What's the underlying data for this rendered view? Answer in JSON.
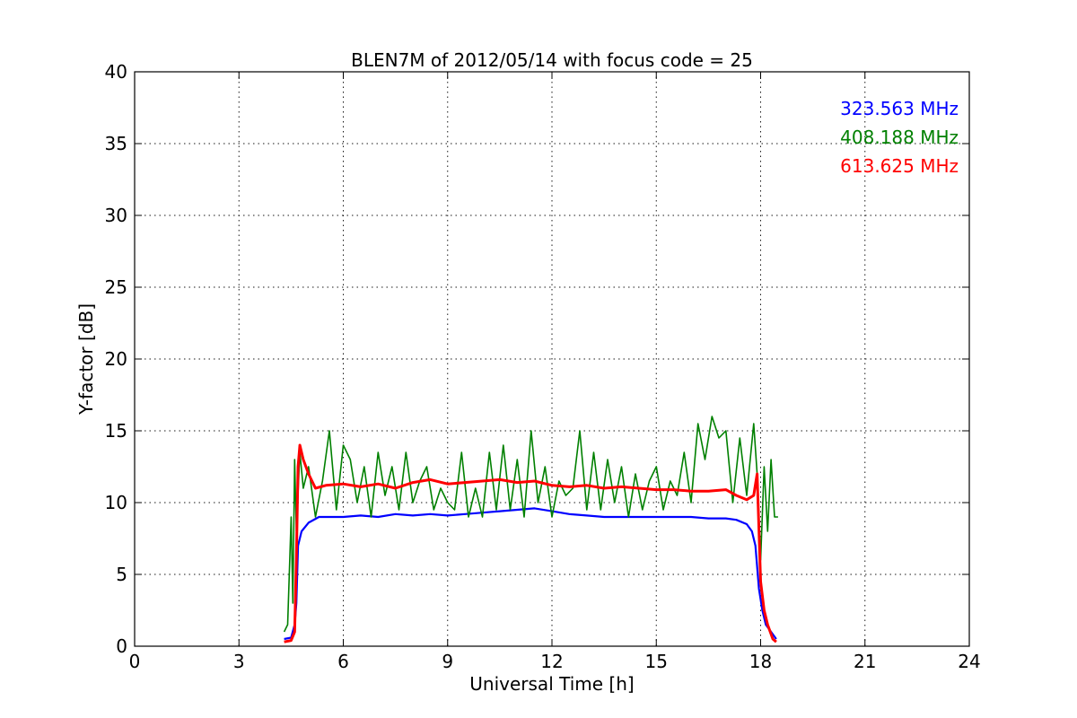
{
  "chart_data": {
    "type": "line",
    "title": "BLEN7M of 2012/05/14 with focus code = 25",
    "xlabel": "Universal Time [h]",
    "ylabel": "Y-factor [dB]",
    "xlim": [
      0,
      24
    ],
    "ylim": [
      0,
      40
    ],
    "xticks": [
      0,
      3,
      6,
      9,
      12,
      15,
      18,
      21,
      24
    ],
    "yticks": [
      0,
      5,
      10,
      15,
      20,
      25,
      30,
      35,
      40
    ],
    "grid": true,
    "legend_position": "top-right",
    "series": [
      {
        "name": "323.563 MHz",
        "color": "#0000ff",
        "x": [
          4.3,
          4.5,
          4.6,
          4.65,
          4.7,
          4.8,
          5.0,
          5.3,
          5.6,
          6.0,
          6.5,
          7.0,
          7.5,
          8.0,
          8.5,
          9.0,
          9.5,
          10.0,
          10.5,
          11.0,
          11.5,
          12.0,
          12.5,
          13.0,
          13.5,
          14.0,
          14.5,
          15.0,
          15.5,
          16.0,
          16.5,
          17.0,
          17.3,
          17.6,
          17.75,
          17.85,
          17.95,
          18.05,
          18.15,
          18.3,
          18.45
        ],
        "y": [
          0.5,
          0.6,
          1.5,
          3.0,
          7.0,
          8.0,
          8.6,
          9.0,
          9.0,
          9.0,
          9.1,
          9.0,
          9.2,
          9.1,
          9.2,
          9.1,
          9.2,
          9.3,
          9.4,
          9.5,
          9.6,
          9.4,
          9.2,
          9.1,
          9.0,
          9.0,
          9.0,
          9.0,
          9.0,
          9.0,
          8.9,
          8.9,
          8.8,
          8.5,
          8.0,
          7.0,
          4.0,
          2.5,
          1.5,
          1.0,
          0.5
        ]
      },
      {
        "name": "408.188 MHz",
        "color": "#008000",
        "x": [
          4.3,
          4.4,
          4.5,
          4.55,
          4.6,
          4.65,
          4.75,
          4.85,
          5.0,
          5.2,
          5.4,
          5.6,
          5.8,
          6.0,
          6.2,
          6.4,
          6.6,
          6.8,
          7.0,
          7.2,
          7.4,
          7.6,
          7.8,
          8.0,
          8.2,
          8.4,
          8.6,
          8.8,
          9.0,
          9.2,
          9.4,
          9.6,
          9.8,
          10.0,
          10.2,
          10.4,
          10.6,
          10.8,
          11.0,
          11.2,
          11.4,
          11.6,
          11.8,
          12.0,
          12.2,
          12.4,
          12.6,
          12.8,
          13.0,
          13.2,
          13.4,
          13.6,
          13.8,
          14.0,
          14.2,
          14.4,
          14.6,
          14.8,
          15.0,
          15.2,
          15.4,
          15.6,
          15.8,
          16.0,
          16.2,
          16.4,
          16.6,
          16.8,
          17.0,
          17.2,
          17.4,
          17.6,
          17.8,
          17.9,
          18.0,
          18.1,
          18.2,
          18.3,
          18.4,
          18.5
        ],
        "y": [
          1.0,
          1.5,
          9.0,
          3.0,
          13.0,
          8.0,
          13.5,
          11.0,
          12.5,
          9.0,
          11.5,
          15.0,
          9.5,
          14.0,
          13.0,
          10.0,
          12.5,
          9.0,
          13.5,
          10.5,
          12.5,
          9.5,
          13.5,
          10.0,
          11.5,
          12.5,
          9.5,
          11.0,
          10.0,
          9.5,
          13.5,
          9.0,
          11.0,
          9.0,
          13.5,
          9.5,
          14.0,
          9.5,
          13.0,
          9.0,
          15.0,
          10.0,
          12.5,
          9.0,
          11.5,
          10.5,
          11.0,
          15.0,
          9.5,
          13.5,
          9.5,
          13.0,
          10.0,
          12.5,
          9.0,
          12.0,
          9.5,
          11.5,
          12.5,
          9.5,
          11.5,
          10.5,
          13.5,
          10.0,
          15.5,
          13.0,
          16.0,
          14.5,
          15.0,
          10.0,
          14.5,
          10.5,
          15.5,
          12.0,
          6.0,
          12.5,
          8.0,
          13.0,
          9.0,
          9.0
        ]
      },
      {
        "name": "613.625 MHz",
        "color": "#ff0000",
        "x": [
          4.3,
          4.5,
          4.6,
          4.65,
          4.7,
          4.75,
          4.85,
          5.0,
          5.2,
          5.5,
          6.0,
          6.5,
          7.0,
          7.5,
          8.0,
          8.5,
          9.0,
          9.5,
          10.0,
          10.5,
          11.0,
          11.5,
          12.0,
          12.5,
          13.0,
          13.5,
          14.0,
          14.5,
          15.0,
          15.5,
          16.0,
          16.5,
          17.0,
          17.3,
          17.6,
          17.8,
          17.9,
          18.0,
          18.1,
          18.2,
          18.35,
          18.45
        ],
        "y": [
          0.3,
          0.4,
          1.0,
          6.0,
          12.5,
          14.0,
          13.0,
          12.0,
          11.0,
          11.2,
          11.3,
          11.1,
          11.3,
          11.0,
          11.4,
          11.6,
          11.3,
          11.4,
          11.5,
          11.6,
          11.4,
          11.5,
          11.2,
          11.1,
          11.2,
          11.0,
          11.1,
          11.0,
          10.9,
          10.9,
          10.8,
          10.8,
          10.9,
          10.5,
          10.2,
          10.5,
          12.0,
          4.5,
          2.5,
          1.5,
          0.5,
          0.3
        ]
      }
    ]
  }
}
